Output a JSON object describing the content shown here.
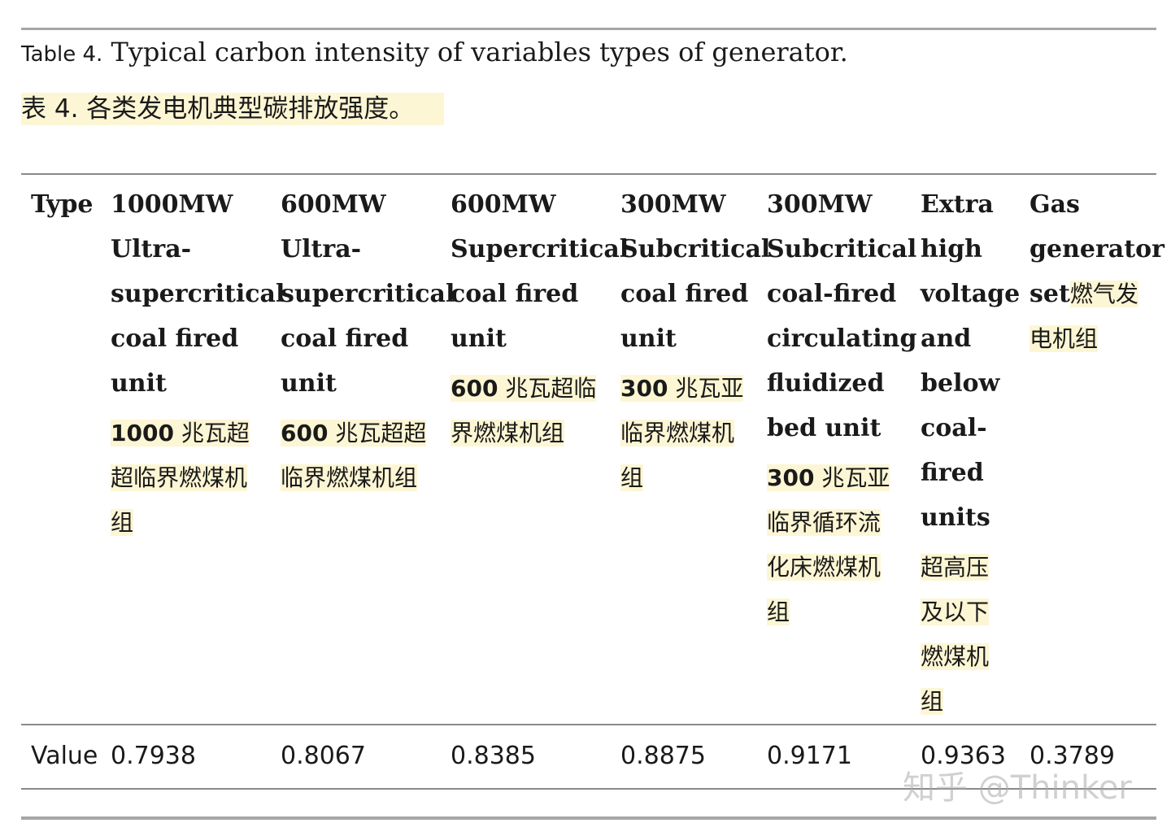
{
  "caption": {
    "label": "Table 4.",
    "title_en": " Typical carbon intensity of variables types of generator.",
    "label_cn": "表 ",
    "num_cn": "4.",
    "title_cn": " 各类发电机典型碳排放强度。"
  },
  "table": {
    "row_header": "Type",
    "value_label": "Value",
    "columns": [
      {
        "en_lines": [
          "1000MW",
          "Ultra-",
          "supercritical",
          "coal fired",
          "unit"
        ],
        "cn_num": "1000",
        "cn_text": " 兆瓦超超临界燃煤机组",
        "value": "0.7938"
      },
      {
        "en_lines": [
          "600MW",
          "Ultra-",
          "supercritical",
          "coal fired",
          "unit"
        ],
        "cn_num": "600",
        "cn_text": " 兆瓦超超临界燃煤机组",
        "value": "0.8067"
      },
      {
        "en_lines": [
          "600MW",
          "Supercritical",
          "coal fired",
          "unit"
        ],
        "cn_num": "600",
        "cn_text": " 兆瓦超临界燃煤机组",
        "value": "0.8385"
      },
      {
        "en_lines": [
          "300MW",
          "Subcritical",
          "coal fired",
          "unit"
        ],
        "cn_num": "300",
        "cn_text": " 兆瓦亚临界燃煤机组",
        "value": "0.8875"
      },
      {
        "en_lines": [
          "300MW",
          "Subcritical",
          "coal-fired",
          "circulating",
          "fluidized",
          "bed unit"
        ],
        "cn_num": "300",
        "cn_text": " 兆瓦亚临界循环流化床燃煤机组",
        "value": "0.9171"
      },
      {
        "en_lines": [
          "Extra",
          "high",
          "voltage",
          "and",
          "below",
          "coal-",
          "fired",
          "units"
        ],
        "cn_num": "",
        "cn_text": "超高压及以下燃煤机组",
        "value": "0.9363"
      },
      {
        "en_lines": [
          "Gas",
          "generator",
          "set"
        ],
        "cn_inline": "燃气发",
        "cn_rest": "电机组",
        "value": "0.3789"
      }
    ]
  },
  "watermark": "知乎 @Thinker"
}
